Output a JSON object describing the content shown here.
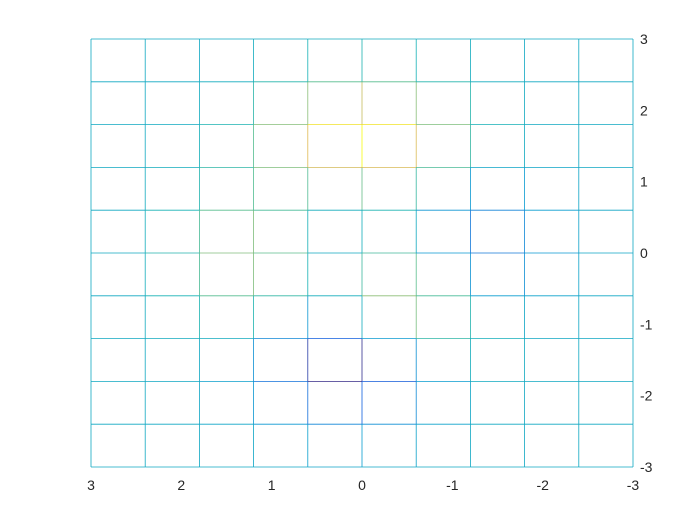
{
  "chart_data": {
    "type": "mesh",
    "title": "",
    "xlabel": "",
    "ylabel": "",
    "x": [
      3,
      2.4,
      1.8,
      1.2,
      0.6,
      0,
      -0.6,
      -1.2,
      -1.8,
      -2.4,
      -3
    ],
    "y": [
      3,
      2.4,
      1.8,
      1.2,
      0.6,
      0,
      -0.6,
      -1.2,
      -1.8,
      -2.4,
      -3
    ],
    "xlim": [
      3,
      -3
    ],
    "ylim": [
      -3,
      3
    ],
    "x_reversed": true,
    "y_axis_location": "right",
    "xticks": [
      3,
      2,
      1,
      0,
      -1,
      -2,
      -3
    ],
    "yticks": [
      3,
      2,
      1,
      0,
      -1,
      -2,
      -3
    ],
    "xtick_labels": [
      "3",
      "2",
      "1",
      "0",
      "-1",
      "-2",
      "-3"
    ],
    "ytick_labels": [
      "3",
      "2",
      "1",
      "0",
      "-1",
      "-2",
      "-3"
    ],
    "view": "top-down",
    "colormap": "parula",
    "grid": false
  }
}
